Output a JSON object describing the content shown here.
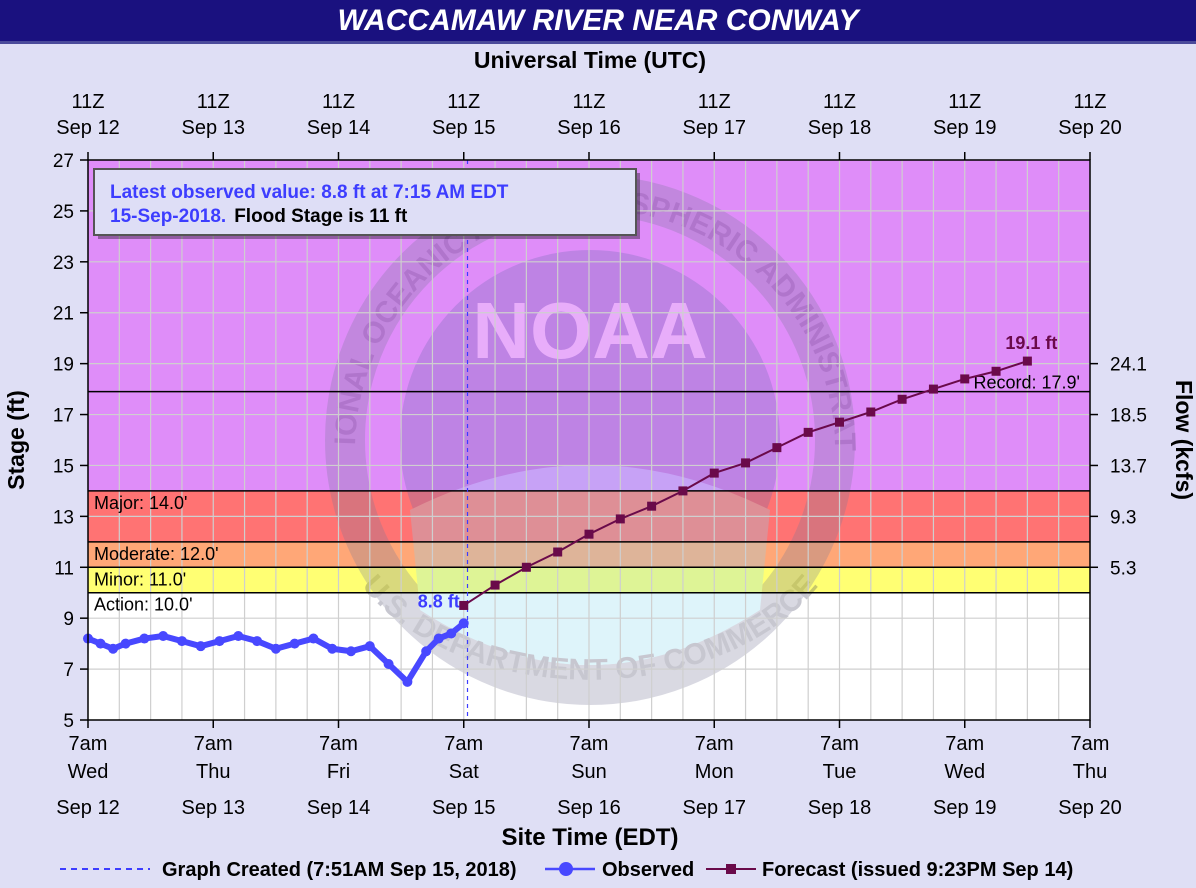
{
  "page": {
    "title": "WACCAMAW RIVER NEAR CONWAY"
  },
  "colors": {
    "background": "#dfdff5",
    "title_bar": "#1a117f",
    "record_zone": "#df8df9",
    "major_zone": "#ff7373",
    "moderate_zone": "#ffa777",
    "minor_zone": "#ffce7e",
    "action_zone": "#ffff73",
    "normal_zone": "#ffffff",
    "observed": "#4848ff",
    "forecast": "#6a0a4a",
    "annotation_blue": "#3d3dff"
  },
  "chart_data": {
    "type": "line",
    "title": "WACCAMAW RIVER NEAR CONWAY",
    "top_axis_title": "Universal Time (UTC)",
    "top_ticks": [
      {
        "l1": "11Z",
        "l2": "Sep 12"
      },
      {
        "l1": "11Z",
        "l2": "Sep 13"
      },
      {
        "l1": "11Z",
        "l2": "Sep 14"
      },
      {
        "l1": "11Z",
        "l2": "Sep 15"
      },
      {
        "l1": "11Z",
        "l2": "Sep 16"
      },
      {
        "l1": "11Z",
        "l2": "Sep 17"
      },
      {
        "l1": "11Z",
        "l2": "Sep 18"
      },
      {
        "l1": "11Z",
        "l2": "Sep 19"
      },
      {
        "l1": "11Z",
        "l2": "Sep 20"
      }
    ],
    "bottom_axis_title": "Site Time (EDT)",
    "bottom_ticks": [
      {
        "time": "7am",
        "day": "Wed",
        "date": "Sep 12"
      },
      {
        "time": "7am",
        "day": "Thu",
        "date": "Sep 13"
      },
      {
        "time": "7am",
        "day": "Fri",
        "date": "Sep 14"
      },
      {
        "time": "7am",
        "day": "Sat",
        "date": "Sep 15"
      },
      {
        "time": "7am",
        "day": "Sun",
        "date": "Sep 16"
      },
      {
        "time": "7am",
        "day": "Mon",
        "date": "Sep 17"
      },
      {
        "time": "7am",
        "day": "Tue",
        "date": "Sep 18"
      },
      {
        "time": "7am",
        "day": "Wed",
        "date": "Sep 19"
      },
      {
        "time": "7am",
        "day": "Thu",
        "date": "Sep 20"
      }
    ],
    "ylabel": "Stage (ft)",
    "y2label": "Flow (kcfs)",
    "ylim": [
      5,
      27
    ],
    "y_ticks": [
      5,
      7,
      9,
      11,
      13,
      15,
      17,
      19,
      21,
      23,
      25,
      27
    ],
    "xlim_days": [
      0,
      8
    ],
    "x_unit": "days after 7am EDT Wed Sep 12",
    "flow_ticks": [
      {
        "stage": 11,
        "label": "5.3"
      },
      {
        "stage": 13,
        "label": "9.3"
      },
      {
        "stage": 15,
        "label": "13.7"
      },
      {
        "stage": 17,
        "label": "18.5"
      },
      {
        "stage": 19,
        "label": "24.1"
      }
    ],
    "zones": [
      {
        "name": "record",
        "from": 17.9,
        "to": 27,
        "color": "#df8df9"
      },
      {
        "name": "major",
        "from": 14,
        "to": 17.9,
        "color": "#df8df9"
      },
      {
        "name": "moderate",
        "from": 12,
        "to": 14,
        "color": "#ff7373"
      },
      {
        "name": "minor",
        "from": 11,
        "to": 12,
        "color": "#ffa777"
      },
      {
        "name": "action",
        "from": 10,
        "to": 11,
        "color": "#ffff73"
      },
      {
        "name": "normal",
        "from": 5,
        "to": 10,
        "color": "#ffffff"
      }
    ],
    "thresholds": [
      {
        "name": "record",
        "value": 17.9,
        "label": "Record: 17.9'"
      },
      {
        "name": "major",
        "value": 14,
        "label": "Major: 14.0'"
      },
      {
        "name": "moderate",
        "value": 12,
        "label": "Moderate: 12.0'"
      },
      {
        "name": "minor",
        "value": 11,
        "label": "Minor: 11.0'"
      },
      {
        "name": "action",
        "value": 10,
        "label": "Action: 10.0'"
      }
    ],
    "latest_box": {
      "line1": "Latest observed value: 8.8 ft at 7:15 AM EDT",
      "line2_blue": "15-Sep-2018.",
      "line2_black": "Flood Stage is 11 ft"
    },
    "created_x_days": 3.03,
    "observed_label": "8.8 ft",
    "forecast_peak_label": "19.1 ft",
    "series": [
      {
        "name": "Observed",
        "x": [
          0,
          0.1,
          0.2,
          0.3,
          0.45,
          0.6,
          0.75,
          0.9,
          1.05,
          1.2,
          1.35,
          1.5,
          1.65,
          1.8,
          1.95,
          2.1,
          2.25,
          2.4,
          2.55,
          2.7,
          2.8,
          2.9,
          3.0
        ],
        "y": [
          8.2,
          8.0,
          7.8,
          8.0,
          8.2,
          8.3,
          8.1,
          7.9,
          8.1,
          8.3,
          8.1,
          7.8,
          8.0,
          8.2,
          7.8,
          7.7,
          7.9,
          7.2,
          6.5,
          7.7,
          8.2,
          8.4,
          8.8
        ]
      },
      {
        "name": "Forecast (issued 9:23PM Sep 14)",
        "x": [
          3.0,
          3.25,
          3.5,
          3.75,
          4.0,
          4.25,
          4.5,
          4.75,
          5.0,
          5.25,
          5.5,
          5.75,
          6.0,
          6.25,
          6.5,
          6.75,
          7.0,
          7.25,
          7.5
        ],
        "y": [
          9.5,
          10.3,
          11.0,
          11.6,
          12.3,
          12.9,
          13.4,
          14.0,
          14.7,
          15.1,
          15.7,
          16.3,
          16.7,
          17.1,
          17.6,
          18.0,
          18.4,
          18.7,
          19.1
        ]
      }
    ],
    "legend": {
      "created": "Graph Created (7:51AM Sep 15, 2018)",
      "observed": "Observed",
      "forecast": "Forecast (issued 9:23PM Sep 14)"
    },
    "watermark": {
      "logo_text": "NOAA",
      "ring_text": "NATIONAL OCEANIC AND ATMOSPHERIC ADMINISTRATION",
      "lower_text": "U.S. DEPARTMENT OF COMMERCE"
    }
  }
}
